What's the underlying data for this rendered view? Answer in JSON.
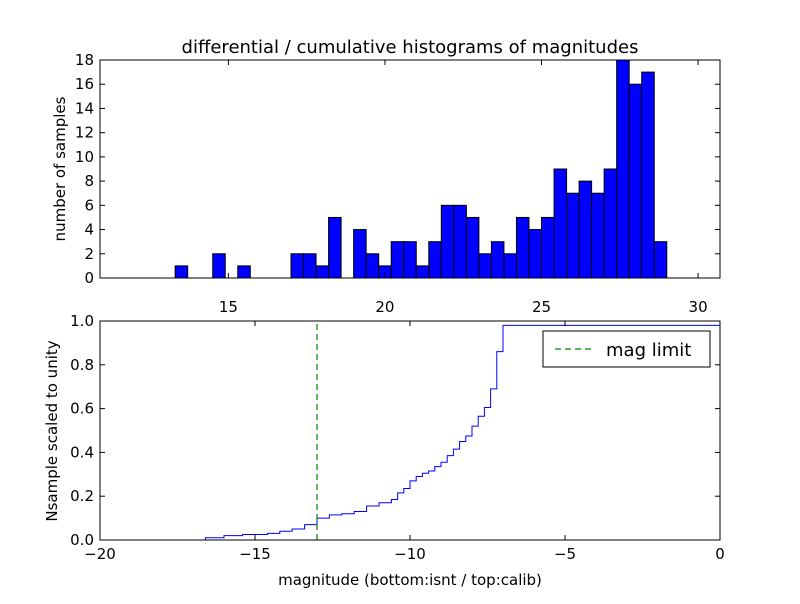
{
  "chart_data": [
    {
      "type": "bar",
      "title": "differential / cumulative histograms of magnitudes",
      "ylabel": "number of samples",
      "xlim": [
        10.9,
        30.7
      ],
      "ylim": [
        0,
        18
      ],
      "xticks": [
        15,
        20,
        25,
        30
      ],
      "yticks": [
        0,
        2,
        4,
        6,
        8,
        10,
        12,
        14,
        16,
        18
      ],
      "xtick_labels": [
        "15",
        "20",
        "25",
        "30"
      ],
      "ytick_labels": [
        "0",
        "2",
        "4",
        "6",
        "8",
        "10",
        "12",
        "14",
        "16",
        "18"
      ],
      "bar_color": "#0000ff",
      "bins": [
        {
          "x0": 13.3,
          "x1": 13.7,
          "count": 1
        },
        {
          "x0": 14.5,
          "x1": 14.9,
          "count": 2
        },
        {
          "x0": 15.3,
          "x1": 15.7,
          "count": 1
        },
        {
          "x0": 17.0,
          "x1": 17.4,
          "count": 2
        },
        {
          "x0": 17.4,
          "x1": 17.8,
          "count": 2
        },
        {
          "x0": 17.8,
          "x1": 18.2,
          "count": 1
        },
        {
          "x0": 18.2,
          "x1": 18.6,
          "count": 5
        },
        {
          "x0": 19.0,
          "x1": 19.4,
          "count": 4
        },
        {
          "x0": 19.4,
          "x1": 19.8,
          "count": 2
        },
        {
          "x0": 19.8,
          "x1": 20.2,
          "count": 1
        },
        {
          "x0": 20.2,
          "x1": 20.6,
          "count": 3
        },
        {
          "x0": 20.6,
          "x1": 21.0,
          "count": 3
        },
        {
          "x0": 21.0,
          "x1": 21.4,
          "count": 1
        },
        {
          "x0": 21.4,
          "x1": 21.8,
          "count": 3
        },
        {
          "x0": 21.8,
          "x1": 22.2,
          "count": 6
        },
        {
          "x0": 22.2,
          "x1": 22.6,
          "count": 6
        },
        {
          "x0": 22.6,
          "x1": 23.0,
          "count": 5
        },
        {
          "x0": 23.0,
          "x1": 23.4,
          "count": 2
        },
        {
          "x0": 23.4,
          "x1": 23.8,
          "count": 3
        },
        {
          "x0": 23.8,
          "x1": 24.2,
          "count": 2
        },
        {
          "x0": 24.2,
          "x1": 24.6,
          "count": 5
        },
        {
          "x0": 24.6,
          "x1": 25.0,
          "count": 4
        },
        {
          "x0": 25.0,
          "x1": 25.4,
          "count": 5
        },
        {
          "x0": 25.4,
          "x1": 25.8,
          "count": 9
        },
        {
          "x0": 25.8,
          "x1": 26.2,
          "count": 7
        },
        {
          "x0": 26.2,
          "x1": 26.6,
          "count": 8
        },
        {
          "x0": 26.6,
          "x1": 27.0,
          "count": 7
        },
        {
          "x0": 27.0,
          "x1": 27.4,
          "count": 9
        },
        {
          "x0": 27.4,
          "x1": 27.8,
          "count": 18
        },
        {
          "x0": 27.8,
          "x1": 28.2,
          "count": 16
        },
        {
          "x0": 28.2,
          "x1": 28.6,
          "count": 17
        },
        {
          "x0": 28.6,
          "x1": 29.0,
          "count": 3
        }
      ]
    },
    {
      "type": "line",
      "xlabel": "magnitude (bottom:isnt / top:calib)",
      "ylabel": "Nsample scaled to unity",
      "xlim": [
        -20,
        0
      ],
      "ylim": [
        0,
        1
      ],
      "xticks": [
        -20,
        -15,
        -10,
        -5,
        0
      ],
      "yticks": [
        0,
        0.2,
        0.4,
        0.6,
        0.8,
        1.0
      ],
      "xtick_labels": [
        "−20",
        "−15",
        "−10",
        "−5",
        "0"
      ],
      "ytick_labels": [
        "0.0",
        "0.2",
        "0.4",
        "0.6",
        "0.8",
        "1.0"
      ],
      "legend": {
        "position": "top-right",
        "entries": [
          "mag limit"
        ]
      },
      "series": [
        {
          "style": "step",
          "color": "#0000ff",
          "x": [
            -20.0,
            -16.6,
            -16.0,
            -15.4,
            -14.6,
            -14.2,
            -13.8,
            -13.4,
            -13.0,
            -12.6,
            -12.2,
            -11.8,
            -11.4,
            -11.0,
            -10.6,
            -10.4,
            -10.2,
            -10.0,
            -9.8,
            -9.6,
            -9.4,
            -9.2,
            -9.0,
            -8.8,
            -8.6,
            -8.4,
            -8.2,
            -8.0,
            -7.8,
            -7.6,
            -7.4,
            -7.2,
            -7.0
          ],
          "y": [
            0.0,
            0.01,
            0.02,
            0.025,
            0.03,
            0.04,
            0.05,
            0.07,
            0.1,
            0.115,
            0.12,
            0.13,
            0.155,
            0.17,
            0.185,
            0.215,
            0.235,
            0.27,
            0.29,
            0.305,
            0.315,
            0.335,
            0.355,
            0.385,
            0.415,
            0.45,
            0.475,
            0.52,
            0.565,
            0.605,
            0.69,
            0.86,
            0.98
          ]
        },
        {
          "name": "mag limit",
          "style": "dashed",
          "color": "#008000",
          "x": [
            -13.0,
            -13.0
          ],
          "y": [
            0,
            1
          ]
        }
      ]
    }
  ]
}
